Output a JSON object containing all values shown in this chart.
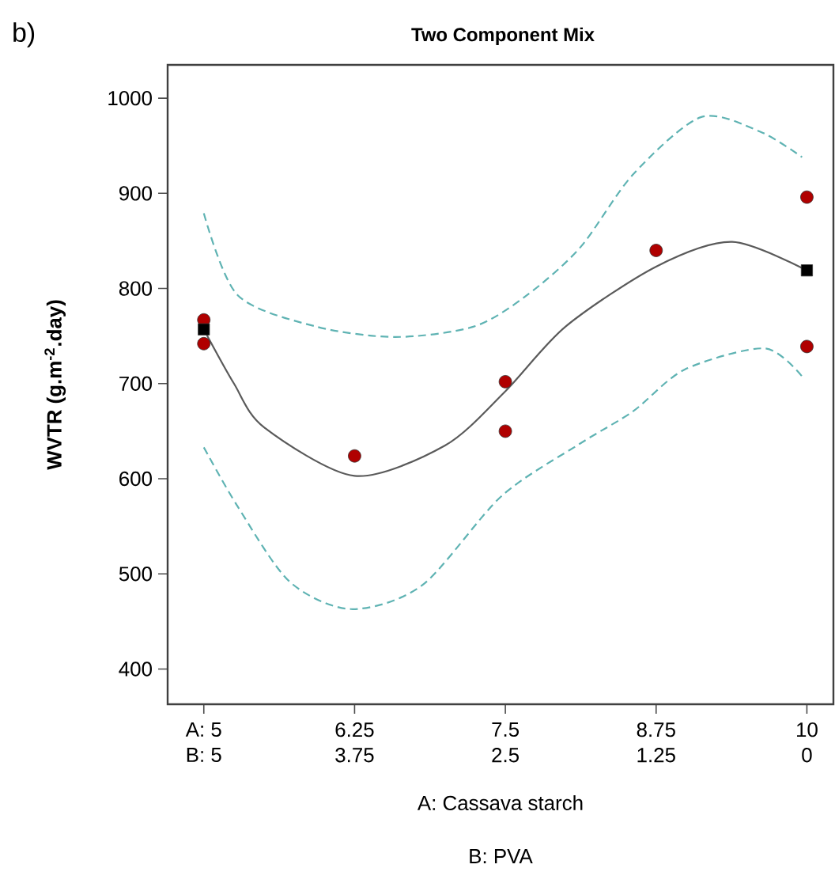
{
  "chart_data": {
    "type": "scatter",
    "title": "Two Component Mix",
    "xlabel": "A: Cassava starch",
    "x2label": "B: PVA",
    "ylabel": "WVTR (g.m$^{-2}$.day)",
    "annotations": [
      "b)"
    ],
    "xlim": [
      4.7,
      10.22
    ],
    "ylim": [
      363,
      1035
    ],
    "xticks": [
      {
        "value": 5,
        "label": "A: 5"
      },
      6.25,
      7.5,
      8.75,
      10
    ],
    "x2lim": [
      5.3,
      -0.22
    ],
    "x2ticks": [
      {
        "value": 5,
        "label": "B: 5"
      },
      3.75,
      2.5,
      1.25,
      0
    ],
    "yticks": [
      400,
      500,
      600,
      700,
      800,
      900,
      1000
    ],
    "grid": false,
    "series": [
      {
        "type": "line",
        "color": "#5a5a5a",
        "line_style": "solid",
        "x": [
          5,
          5.25,
          5.5,
          6.25,
          7.0,
          7.5,
          8.0,
          8.75,
          9.38,
          10
        ],
        "values": [
          757,
          700,
          654,
          603,
          635,
          692,
          760,
          823,
          849,
          819
        ]
      },
      {
        "type": "line",
        "color": "#5fb3b3",
        "line_style": "dashed",
        "x": [
          5,
          5.28,
          5.93,
          6.59,
          7.24,
          7.68,
          8.12,
          8.56,
          9.12,
          9.61,
          9.96
        ],
        "values": [
          879,
          793,
          760,
          749,
          760,
          793,
          843,
          920,
          980,
          965,
          938
        ]
      },
      {
        "type": "line",
        "color": "#5fb3b3",
        "line_style": "dashed",
        "x": [
          5,
          5.28,
          5.71,
          6.22,
          6.81,
          7.47,
          8.12,
          8.56,
          8.99,
          9.65,
          9.97
        ],
        "values": [
          633,
          571,
          492,
          463,
          488,
          582,
          637,
          671,
          715,
          737,
          706
        ]
      },
      {
        "color": "#b00000",
        "marker": "circle",
        "x": [
          5,
          5,
          6.25,
          7.5,
          7.5,
          8.75,
          10,
          10
        ],
        "values": [
          767,
          742,
          624,
          702,
          650,
          840,
          896,
          739
        ]
      },
      {
        "color": "#000000",
        "marker": "square",
        "x": [
          5,
          10
        ],
        "values": [
          757,
          819
        ]
      }
    ]
  }
}
